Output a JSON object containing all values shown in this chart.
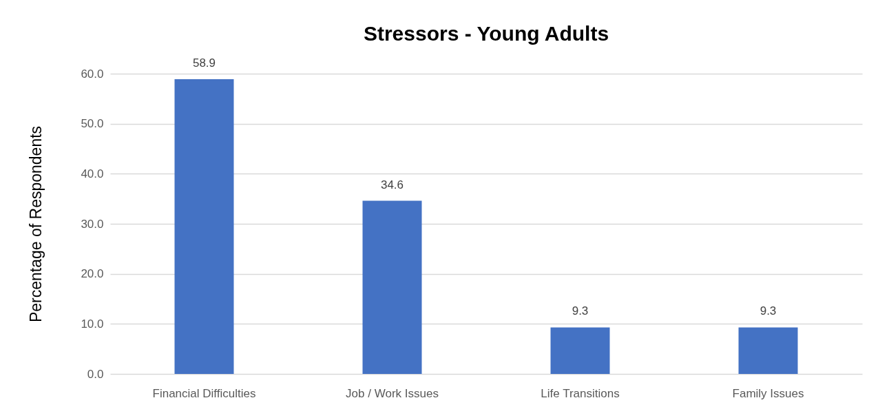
{
  "chart_data": {
    "type": "bar",
    "title": "Stressors - Young Adults",
    "ylabel": "Percentage of Respondents",
    "categories": [
      "Financial Difficulties",
      "Job / Work Issues",
      "Life Transitions",
      "Family Issues"
    ],
    "values": [
      58.9,
      34.6,
      9.3,
      9.3
    ],
    "color": "#4472c4",
    "ylim": [
      0,
      60
    ],
    "yticks": [
      {
        "value": 0,
        "label": "0.0"
      },
      {
        "value": 10,
        "label": "10.0"
      },
      {
        "value": 20,
        "label": "20.0"
      },
      {
        "value": 30,
        "label": "30.0"
      },
      {
        "value": 40,
        "label": "40.0"
      },
      {
        "value": 50,
        "label": "50.0"
      },
      {
        "value": 60,
        "label": "60.0"
      }
    ],
    "grid": "y",
    "data_labels": true
  }
}
